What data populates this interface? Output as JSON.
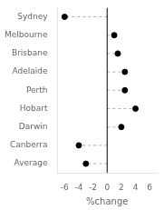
{
  "chart_data": {
    "type": "lollipop",
    "orientation": "horizontal",
    "categories": [
      "Sydney",
      "Melbourne",
      "Brisbane",
      "Adelaide",
      "Perth",
      "Hobart",
      "Darwin",
      "Canberra",
      "Average"
    ],
    "values": [
      -6.0,
      1.0,
      1.5,
      2.5,
      2.5,
      4.0,
      2.0,
      -4.0,
      -3.0
    ],
    "xlabel": "%change",
    "xlim": [
      -7,
      7
    ],
    "xticks": [
      -6,
      -4,
      -2,
      0,
      2,
      4,
      6
    ],
    "color": "#000000",
    "marker": "circle",
    "line_style": "dashed",
    "grid": false
  }
}
